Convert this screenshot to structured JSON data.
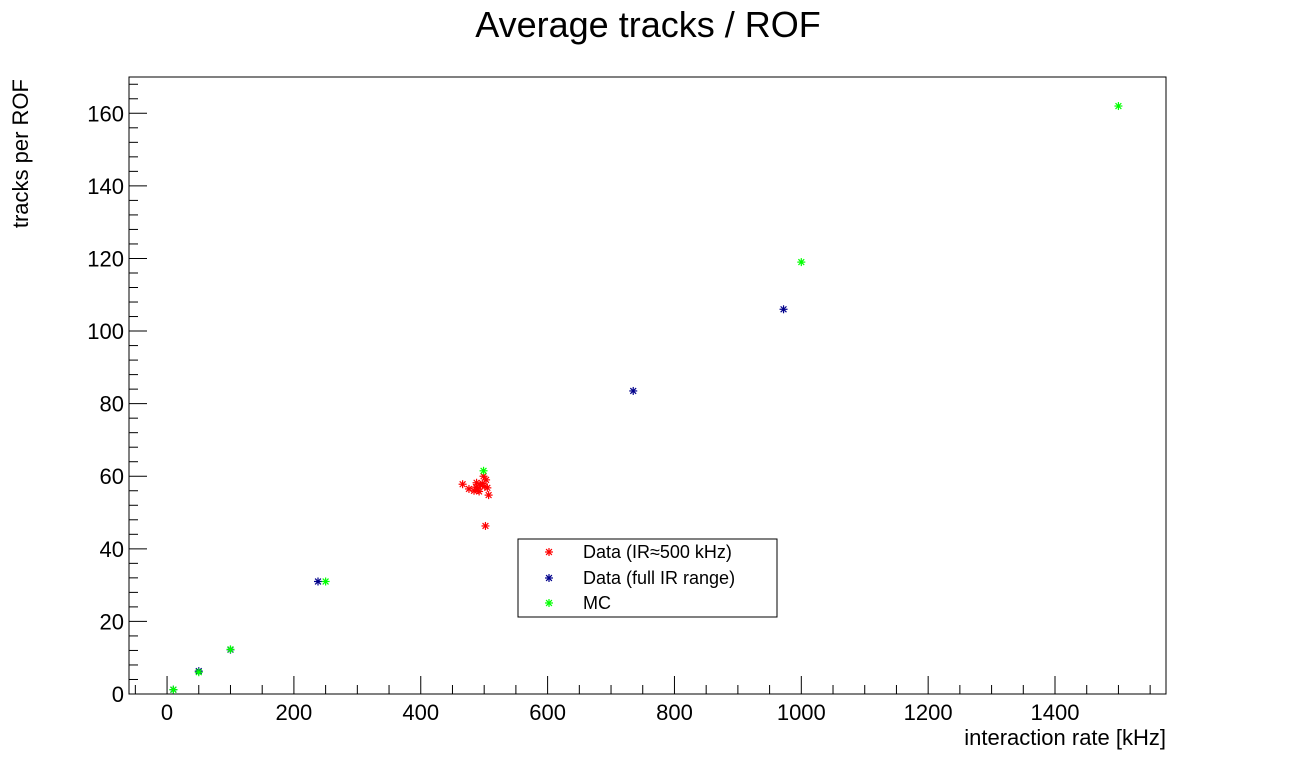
{
  "chart_data": {
    "type": "scatter",
    "title": "Average tracks / ROF",
    "xlabel": "interaction rate [kHz]",
    "ylabel": "tracks per ROF",
    "xlim": [
      -60,
      1575
    ],
    "ylim": [
      0,
      170
    ],
    "xticks": [
      0,
      200,
      400,
      600,
      800,
      1000,
      1200,
      1400
    ],
    "yticks": [
      0,
      20,
      40,
      60,
      80,
      100,
      120,
      140,
      160
    ],
    "grid": false,
    "legend_position": "center",
    "series": [
      {
        "name": "Data (IR≈500 kHz)",
        "color": "#ff0000",
        "marker": "star",
        "x": [
          466,
          476,
          484,
          487,
          488,
          490,
          492,
          494,
          497,
          499,
          501,
          503,
          505,
          507,
          502
        ],
        "y": [
          57.8,
          56.5,
          56.0,
          57.0,
          58.2,
          56.2,
          55.8,
          57.5,
          58.0,
          60.0,
          57.2,
          59.0,
          56.8,
          54.8,
          46.3
        ]
      },
      {
        "name": "Data (full IR range)",
        "color": "#00008b",
        "marker": "star",
        "x": [
          10,
          50,
          100,
          238,
          735,
          972
        ],
        "y": [
          1.2,
          6.3,
          12.2,
          31.0,
          83.5,
          106.0
        ]
      },
      {
        "name": "MC",
        "color": "#00ff00",
        "marker": "star",
        "x": [
          10,
          50,
          100,
          250,
          499,
          1000,
          1500
        ],
        "y": [
          1.2,
          6.0,
          12.3,
          31.0,
          61.5,
          119.0,
          162.0
        ]
      }
    ]
  }
}
